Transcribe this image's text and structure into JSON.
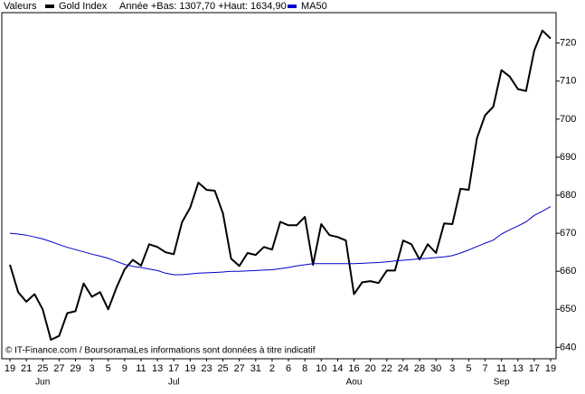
{
  "chart_data": {
    "type": "line",
    "label": "Valeurs",
    "subtitle": "Année +Bas: 1307,70 +Haut: 1634,90",
    "footer": "© IT-Finance.com / BoursoramaLes informations sont données à titre indicatif",
    "categories": [
      "19",
      null,
      "21",
      null,
      "25",
      null,
      "27",
      null,
      "29",
      null,
      "3",
      null,
      "5",
      null,
      "9",
      null,
      "11",
      null,
      "13",
      null,
      "17",
      null,
      "19",
      null,
      "23",
      null,
      "25",
      null,
      "27",
      null,
      "31",
      null,
      "2",
      null,
      "6",
      null,
      "8",
      null,
      "10",
      null,
      "14",
      null,
      "16",
      null,
      "20",
      null,
      "22",
      null,
      "24",
      null,
      "28",
      null,
      "30",
      null,
      "3",
      null,
      "5",
      null,
      "7",
      null,
      "11",
      null,
      "13",
      null,
      "17",
      null,
      "19"
    ],
    "months": [
      "Jun",
      "Jul",
      "Aou",
      "Sep"
    ],
    "series": [
      {
        "name": "Gold Index",
        "color": "#000000",
        "values": [
          661.7,
          654.5,
          652,
          654,
          650,
          642,
          643,
          649,
          649.5,
          656.8,
          653.3,
          654.5,
          650,
          655.7,
          660.5,
          663,
          661.5,
          667.1,
          666.4,
          665,
          664.5,
          672.9,
          676.7,
          683.3,
          681.4,
          681.2,
          675.2,
          663.3,
          661.4,
          664.8,
          664.3,
          666.4,
          665.7,
          673,
          672.1,
          672.1,
          674.3,
          661.7,
          672.4,
          669.5,
          669,
          668.1,
          654,
          657.1,
          657.4,
          656.9,
          660.2,
          660.2,
          668.1,
          667.1,
          663.1,
          667.1,
          664.8,
          672.6,
          672.4,
          681.7,
          681.4,
          695,
          701,
          703.3,
          712.9,
          711.2,
          707.9,
          707.4,
          718.1,
          723.3,
          721.2
        ]
      },
      {
        "name": "MA50",
        "color": "#0000cc",
        "values": [
          670,
          669.8,
          669.5,
          669,
          668.5,
          667.8,
          667,
          666.3,
          665.7,
          665.1,
          664.5,
          664,
          663.4,
          662.6,
          661.8,
          661.3,
          661,
          660.6,
          660.2,
          659.5,
          659.1,
          659.1,
          659.3,
          659.5,
          659.6,
          659.7,
          659.8,
          660,
          660,
          660.1,
          660.2,
          660.3,
          660.4,
          660.7,
          661,
          661.4,
          661.7,
          662,
          662,
          662,
          662,
          662,
          662,
          662.1,
          662.2,
          662.3,
          662.5,
          662.7,
          662.9,
          663.1,
          663.3,
          663.4,
          663.6,
          663.8,
          664.1,
          664.8,
          665.6,
          666.5,
          667.4,
          668.2,
          669.8,
          670.9,
          671.9,
          673,
          674.7,
          675.8,
          677
        ]
      }
    ],
    "ylim": [
      637,
      728
    ],
    "yticks": [
      640,
      650,
      660,
      670,
      680,
      690,
      700,
      710,
      720
    ],
    "grid": false
  }
}
